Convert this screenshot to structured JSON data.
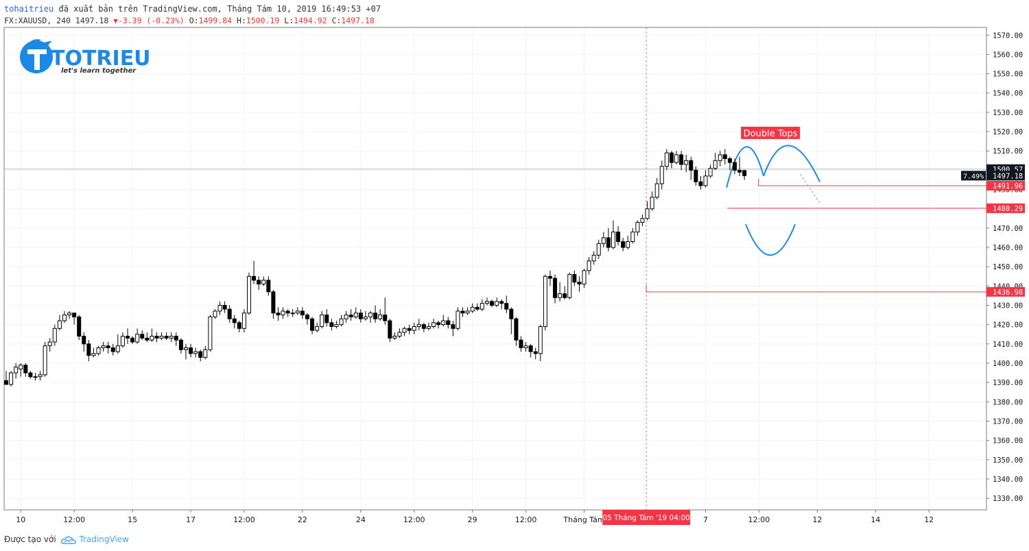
{
  "header": {
    "author": "tohaitrieu",
    "published_text": "đã xuất bản trên TradingView.com, Tháng Tám 10, 2019 16:49:53 +07",
    "symbol_info": "FX:XAUUSD, 240 1497.18",
    "change": "-3.39 (-0.23%)",
    "o_label": "O:",
    "o_value": "1499.84",
    "h_label": "H:",
    "h_value": "1500.19",
    "l_label": "L:",
    "l_value": "1494.92",
    "c_label": "C:",
    "c_value": "1497.18"
  },
  "logo": {
    "brand": "TOTRIEU",
    "tagline": "let's learn together"
  },
  "footer": {
    "created_with": "Được tạo với",
    "brand": "TradingView"
  },
  "colors": {
    "accent_red": "#f23645",
    "brand_blue": "#1e88e5",
    "bear": "#000000",
    "bull": "#ffffff",
    "tag_dark": "#131722"
  },
  "chart_data": {
    "type": "candlestick",
    "ylim": [
      1324,
      1574
    ],
    "y_ticks": [
      1330,
      1340,
      1350,
      1360,
      1370,
      1380,
      1390,
      1400,
      1410,
      1420,
      1430,
      1440,
      1450,
      1460,
      1470,
      1480,
      1490,
      1500,
      1510,
      1520,
      1530,
      1540,
      1550,
      1560,
      1570
    ],
    "x_ticks": [
      {
        "label": "10",
        "i": 3
      },
      {
        "label": "12:00",
        "i": 14
      },
      {
        "label": "15",
        "i": 26
      },
      {
        "label": "17",
        "i": 38
      },
      {
        "label": "12:00",
        "i": 49
      },
      {
        "label": "22",
        "i": 61
      },
      {
        "label": "24",
        "i": 73
      },
      {
        "label": "12:00",
        "i": 84
      },
      {
        "label": "29",
        "i": 96
      },
      {
        "label": "12:00",
        "i": 107
      },
      {
        "label": "Tháng Tám",
        "i": 119
      },
      {
        "label": "7",
        "i": 144
      },
      {
        "label": "12:00",
        "i": 155
      },
      {
        "label": "12",
        "i": 167
      },
      {
        "label": "14",
        "i": 179
      },
      {
        "label": "12",
        "i": 190
      }
    ],
    "crosshair_label": "05 Tháng Tám '19   04:00",
    "crosshair_i": 131.8,
    "price_tags": [
      {
        "value": 1500.57,
        "label": "1500.57",
        "style": "dark"
      },
      {
        "value": 1497.18,
        "label": "1497.18",
        "style": "dark"
      },
      {
        "value": 1491.96,
        "label": "1491.96",
        "style": "red"
      },
      {
        "value": 1480.29,
        "label": "1480.29",
        "style": "red"
      },
      {
        "value": 1436.98,
        "label": "1436.98",
        "style": "red"
      }
    ],
    "percent_label": "7.49%",
    "pattern_label": "Double Tops",
    "candles": [
      [
        1391,
        1389,
        1396,
        1389
      ],
      [
        1389,
        1395,
        1396,
        1388
      ],
      [
        1395,
        1398,
        1400,
        1392
      ],
      [
        1397,
        1399,
        1400,
        1393
      ],
      [
        1399,
        1395,
        1400,
        1393
      ],
      [
        1395,
        1393,
        1396,
        1392
      ],
      [
        1393,
        1393,
        1395,
        1391
      ],
      [
        1393,
        1394,
        1396,
        1391
      ],
      [
        1394,
        1409,
        1411,
        1393
      ],
      [
        1409,
        1411,
        1413,
        1406
      ],
      [
        1411,
        1418,
        1420,
        1409
      ],
      [
        1418,
        1422,
        1425,
        1417
      ],
      [
        1422,
        1425,
        1427,
        1421
      ],
      [
        1425,
        1426,
        1427,
        1423
      ],
      [
        1426,
        1424,
        1426,
        1420
      ],
      [
        1424,
        1414,
        1425,
        1412
      ],
      [
        1414,
        1410,
        1416,
        1406
      ],
      [
        1410,
        1404,
        1412,
        1401
      ],
      [
        1404,
        1405,
        1408,
        1403
      ],
      [
        1405,
        1408,
        1409,
        1404
      ],
      [
        1408,
        1409,
        1411,
        1406
      ],
      [
        1409,
        1408,
        1411,
        1405
      ],
      [
        1408,
        1406,
        1410,
        1404
      ],
      [
        1406,
        1409,
        1415,
        1405
      ],
      [
        1409,
        1414,
        1416,
        1408
      ],
      [
        1414,
        1413,
        1418,
        1410
      ],
      [
        1413,
        1411,
        1414,
        1410
      ],
      [
        1411,
        1415,
        1418,
        1410
      ],
      [
        1415,
        1413,
        1417,
        1412
      ],
      [
        1413,
        1412,
        1416,
        1411
      ],
      [
        1412,
        1414,
        1418,
        1411
      ],
      [
        1414,
        1413,
        1416,
        1411
      ],
      [
        1413,
        1414,
        1416,
        1412
      ],
      [
        1414,
        1413,
        1416,
        1412
      ],
      [
        1413,
        1414,
        1416,
        1411
      ],
      [
        1414,
        1412,
        1416,
        1409
      ],
      [
        1412,
        1407,
        1413,
        1405
      ],
      [
        1407,
        1408,
        1410,
        1402
      ],
      [
        1408,
        1405,
        1410,
        1403
      ],
      [
        1405,
        1406,
        1408,
        1403
      ],
      [
        1406,
        1403,
        1407,
        1401
      ],
      [
        1403,
        1407,
        1409,
        1402
      ],
      [
        1407,
        1424,
        1425,
        1406
      ],
      [
        1424,
        1427,
        1428,
        1423
      ],
      [
        1427,
        1430,
        1432,
        1425
      ],
      [
        1430,
        1428,
        1432,
        1426
      ],
      [
        1428,
        1423,
        1430,
        1421
      ],
      [
        1423,
        1421,
        1425,
        1418
      ],
      [
        1421,
        1418,
        1422,
        1416
      ],
      [
        1418,
        1426,
        1428,
        1416
      ],
      [
        1426,
        1445,
        1447,
        1425
      ],
      [
        1445,
        1443,
        1453,
        1441
      ],
      [
        1443,
        1441,
        1445,
        1438
      ],
      [
        1441,
        1443,
        1445,
        1440
      ],
      [
        1443,
        1437,
        1445,
        1435
      ],
      [
        1437,
        1426,
        1438,
        1423
      ],
      [
        1426,
        1425,
        1429,
        1422
      ],
      [
        1425,
        1427,
        1429,
        1423
      ],
      [
        1427,
        1426,
        1428,
        1424
      ],
      [
        1426,
        1426,
        1428,
        1424
      ],
      [
        1426,
        1427,
        1429,
        1425
      ],
      [
        1427,
        1425,
        1429,
        1423
      ],
      [
        1425,
        1423,
        1426,
        1420
      ],
      [
        1423,
        1417,
        1424,
        1415
      ],
      [
        1417,
        1419,
        1421,
        1416
      ],
      [
        1419,
        1425,
        1427,
        1418
      ],
      [
        1425,
        1421,
        1428,
        1419
      ],
      [
        1421,
        1419,
        1423,
        1417
      ],
      [
        1419,
        1420,
        1422,
        1418
      ],
      [
        1420,
        1423,
        1425,
        1419
      ],
      [
        1423,
        1425,
        1427,
        1421
      ],
      [
        1425,
        1424,
        1428,
        1422
      ],
      [
        1424,
        1426,
        1429,
        1423
      ],
      [
        1426,
        1423,
        1428,
        1421
      ],
      [
        1423,
        1424,
        1427,
        1422
      ],
      [
        1424,
        1426,
        1427,
        1421
      ],
      [
        1426,
        1423,
        1430,
        1421
      ],
      [
        1423,
        1425,
        1428,
        1422
      ],
      [
        1425,
        1422,
        1434,
        1420
      ],
      [
        1422,
        1413,
        1423,
        1411
      ],
      [
        1413,
        1414,
        1416,
        1412
      ],
      [
        1414,
        1416,
        1418,
        1413
      ],
      [
        1416,
        1418,
        1419,
        1414
      ],
      [
        1418,
        1417,
        1420,
        1415
      ],
      [
        1417,
        1419,
        1421,
        1415
      ],
      [
        1419,
        1420,
        1423,
        1417
      ],
      [
        1420,
        1418,
        1421,
        1416
      ],
      [
        1418,
        1419,
        1421,
        1417
      ],
      [
        1419,
        1421,
        1423,
        1418
      ],
      [
        1421,
        1420,
        1422,
        1418
      ],
      [
        1420,
        1422,
        1425,
        1419
      ],
      [
        1422,
        1420,
        1424,
        1418
      ],
      [
        1420,
        1418,
        1422,
        1414
      ],
      [
        1418,
        1427,
        1429,
        1417
      ],
      [
        1427,
        1426,
        1429,
        1424
      ],
      [
        1426,
        1427,
        1429,
        1425
      ],
      [
        1427,
        1429,
        1431,
        1426
      ],
      [
        1429,
        1428,
        1431,
        1427
      ],
      [
        1428,
        1431,
        1433,
        1427
      ],
      [
        1431,
        1432,
        1434,
        1430
      ],
      [
        1432,
        1430,
        1433,
        1429
      ],
      [
        1430,
        1432,
        1434,
        1429
      ],
      [
        1432,
        1431,
        1433,
        1428
      ],
      [
        1431,
        1428,
        1435,
        1426
      ],
      [
        1428,
        1423,
        1429,
        1415
      ],
      [
        1423,
        1412,
        1424,
        1409
      ],
      [
        1412,
        1408,
        1414,
        1406
      ],
      [
        1408,
        1409,
        1411,
        1406
      ],
      [
        1409,
        1406,
        1410,
        1403
      ],
      [
        1406,
        1405,
        1408,
        1402
      ],
      [
        1405,
        1419,
        1420,
        1401
      ],
      [
        1419,
        1445,
        1446,
        1417
      ],
      [
        1445,
        1444,
        1448,
        1440
      ],
      [
        1444,
        1434,
        1446,
        1431
      ],
      [
        1434,
        1436,
        1442,
        1432
      ],
      [
        1436,
        1434,
        1440,
        1433
      ],
      [
        1434,
        1446,
        1447,
        1433
      ],
      [
        1446,
        1442,
        1448,
        1440
      ],
      [
        1442,
        1441,
        1445,
        1437
      ],
      [
        1441,
        1448,
        1449,
        1439
      ],
      [
        1448,
        1453,
        1455,
        1446
      ],
      [
        1453,
        1456,
        1458,
        1451
      ],
      [
        1456,
        1462,
        1464,
        1454
      ],
      [
        1462,
        1465,
        1468,
        1460
      ],
      [
        1465,
        1460,
        1470,
        1458
      ],
      [
        1460,
        1468,
        1474,
        1459
      ],
      [
        1468,
        1463,
        1471,
        1461
      ],
      [
        1463,
        1460,
        1465,
        1458
      ],
      [
        1460,
        1463,
        1466,
        1459
      ],
      [
        1463,
        1468,
        1470,
        1462
      ],
      [
        1468,
        1473,
        1474,
        1466
      ],
      [
        1473,
        1475,
        1477,
        1471
      ],
      [
        1475,
        1480,
        1484,
        1474
      ],
      [
        1480,
        1486,
        1489,
        1479
      ],
      [
        1486,
        1493,
        1496,
        1485
      ],
      [
        1493,
        1502,
        1505,
        1490
      ],
      [
        1502,
        1509,
        1511,
        1500
      ],
      [
        1509,
        1504,
        1510,
        1501
      ],
      [
        1504,
        1508,
        1510,
        1503
      ],
      [
        1508,
        1503,
        1510,
        1500
      ],
      [
        1503,
        1505,
        1508,
        1499
      ],
      [
        1505,
        1500,
        1507,
        1495
      ],
      [
        1500,
        1494,
        1502,
        1492
      ],
      [
        1494,
        1492,
        1497,
        1490
      ],
      [
        1492,
        1497,
        1500,
        1491
      ],
      [
        1497,
        1501,
        1503,
        1496
      ],
      [
        1501,
        1505,
        1509,
        1500
      ],
      [
        1505,
        1508,
        1510,
        1502
      ],
      [
        1508,
        1506,
        1511,
        1503
      ],
      [
        1506,
        1504,
        1507,
        1500
      ],
      [
        1504,
        1500,
        1506,
        1498
      ],
      [
        1500,
        1499,
        1507,
        1497
      ],
      [
        1499.84,
        1497.18,
        1500.19,
        1494.92
      ]
    ]
  }
}
